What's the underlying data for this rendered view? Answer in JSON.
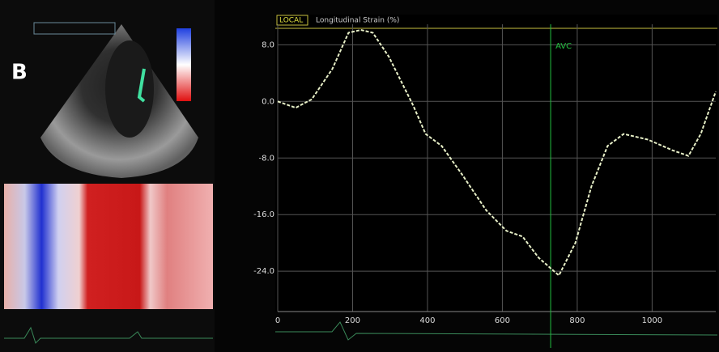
{
  "panel_label": "B",
  "chart_data": {
    "type": "line",
    "mode_label": "LOCAL",
    "title": "Longitudinal Strain (%)",
    "x": [
      0,
      48,
      91,
      146,
      189,
      222,
      254,
      297,
      362,
      395,
      438,
      492,
      557,
      611,
      654,
      697,
      751,
      795,
      838,
      881,
      924,
      989,
      1054,
      1097,
      1130,
      1170
    ],
    "series": [
      {
        "color": "#e8f0c8",
        "values": [
          0,
          -0.9,
          0.3,
          4.6,
          9.7,
          10.1,
          9.7,
          6.3,
          -0.6,
          -4.6,
          -6.3,
          -10.3,
          -15.4,
          -18.3,
          -19.1,
          -22.1,
          -24.6,
          -20,
          -12,
          -6.3,
          -4.6,
          -5.4,
          -6.9,
          -7.7,
          -4.6,
          1.4
        ]
      }
    ],
    "xlim": [
      0,
      1170
    ],
    "ylim": [
      -29.7,
      10.9
    ],
    "xticks": [
      0,
      200,
      400,
      600,
      800,
      1000
    ],
    "yticks": [
      {
        "value": 8,
        "label": "8.0"
      },
      {
        "value": 0,
        "label": "0.0"
      },
      {
        "value": -8,
        "label": "-8.0"
      },
      {
        "value": -16,
        "label": "-16.0"
      },
      {
        "value": -24,
        "label": "-24.0"
      }
    ],
    "grid": true,
    "annotations": [
      {
        "text": "AVC",
        "x": 729,
        "color": "#22c040"
      }
    ]
  }
}
